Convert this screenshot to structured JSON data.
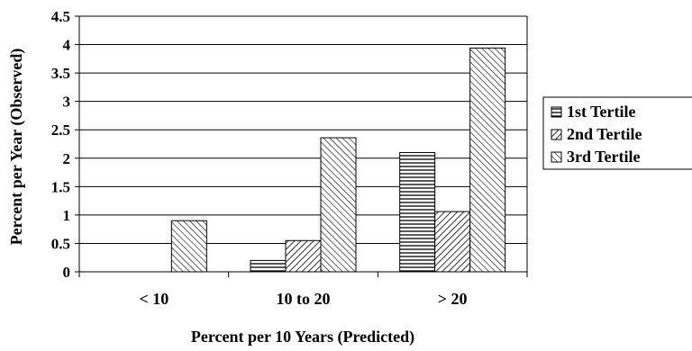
{
  "chart_data": {
    "type": "bar",
    "title": "",
    "xlabel": "Percent per 10 Years (Predicted)",
    "ylabel": "Percent per Year (Observed)",
    "categories": [
      "< 10",
      "10 to 20",
      "> 20"
    ],
    "series": [
      {
        "name": "1st Tertile",
        "pattern": "horizontal-lines",
        "values": [
          0,
          0.2,
          2.1
        ]
      },
      {
        "name": "2nd Tertile",
        "pattern": "diagonal-lines-down",
        "values": [
          0,
          0.55,
          1.06
        ]
      },
      {
        "name": "3rd Tertile",
        "pattern": "diagonal-lines-up",
        "values": [
          0.9,
          2.36,
          3.94
        ]
      }
    ],
    "ylim": [
      0,
      4.5
    ],
    "yticks": [
      "0",
      "0.5",
      "1",
      "1.5",
      "2",
      "2.5",
      "3",
      "3.5",
      "4",
      "4.5"
    ],
    "grid": true,
    "legend_position": "right"
  },
  "colors": {
    "bar_stroke": "#000000",
    "pattern_line": "#000000",
    "background": "#ffffff",
    "gridline": "#000000"
  }
}
